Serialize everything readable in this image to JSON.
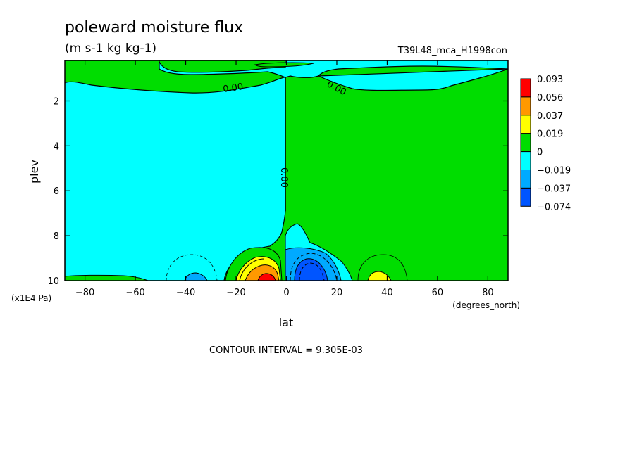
{
  "chart_data": {
    "type": "contour",
    "title": "poleward moisture flux",
    "units": "(m s-1 kg kg-1)",
    "experiment": "T39L48_mca_H1998con",
    "xlabel": "lat",
    "xunits": "(degrees_north)",
    "ylabel": "plev",
    "yunits": "(x1E4 Pa)",
    "xlim": [
      -88,
      88
    ],
    "ylim": [
      10,
      0.2
    ],
    "xticks": [
      -80,
      -60,
      -40,
      -20,
      0,
      20,
      40,
      60,
      80
    ],
    "yticks": [
      2,
      4,
      6,
      8,
      10
    ],
    "contour_interval_text": "CONTOUR INTERVAL = 9.305E-03",
    "contour_labels": [
      "0.00",
      "0.00",
      "0.00"
    ],
    "colorbar": {
      "labels": [
        "0.093",
        "0.056",
        "0.037",
        "0.019",
        "0",
        "−0.019",
        "−0.037",
        "−0.074"
      ],
      "colors": [
        "#ff0000",
        "#ff9900",
        "#ffff00",
        "#00dd00",
        "#00ffff",
        "#00aaff",
        "#0055ff"
      ]
    },
    "regions": [
      {
        "name": "positive-aloft-north",
        "sign": "+",
        "level": 0.0,
        "color": "#00dd00"
      },
      {
        "name": "negative-south",
        "sign": "-",
        "level": 0.0,
        "color": "#00ffff"
      },
      {
        "name": "positive-max-south",
        "lat": -10,
        "plev": 9.8,
        "value": 0.093,
        "color": "#ff0000"
      },
      {
        "name": "negative-min-north",
        "lat": 10,
        "plev": 9.8,
        "value": -0.074,
        "color": "#0055ff"
      },
      {
        "name": "positive-local-north",
        "lat": 37,
        "plev": 9.8,
        "value": 0.019,
        "color": "#ffff00"
      },
      {
        "name": "negative-local-south",
        "lat": -37,
        "plev": 9.8,
        "value": -0.019,
        "color": "#00aaff"
      }
    ]
  }
}
